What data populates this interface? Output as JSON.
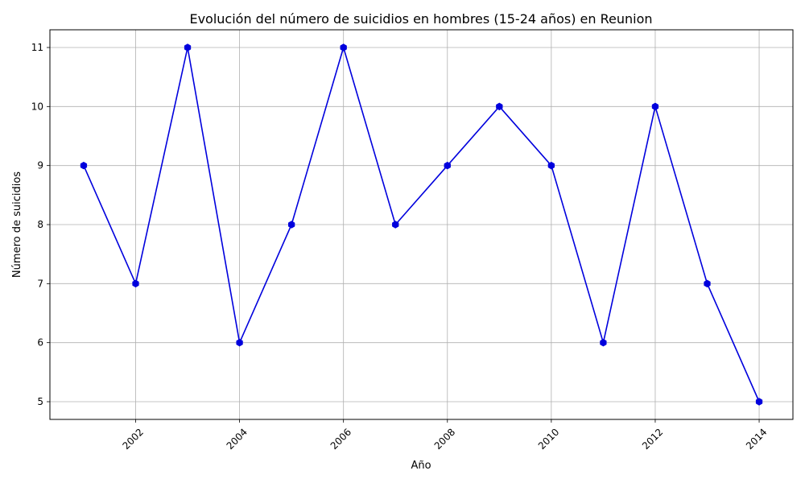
{
  "chart_data": {
    "type": "line",
    "title": "Evolución del número de suicidios en hombres (15-24 años) en Reunion",
    "xlabel": "Año",
    "ylabel": "Número de suicidios",
    "x": [
      2001,
      2002,
      2003,
      2004,
      2005,
      2006,
      2007,
      2008,
      2009,
      2010,
      2011,
      2012,
      2013,
      2014
    ],
    "series": [
      {
        "values": [
          9,
          7,
          11,
          6,
          8,
          11,
          8,
          9,
          10,
          9,
          6,
          10,
          7,
          5
        ],
        "color": "#0000dd",
        "marker": "hexagon"
      }
    ],
    "xlim": [
      2000.35,
      2014.65
    ],
    "ylim": [
      4.7,
      11.3
    ],
    "x_ticks": [
      "2002",
      "2004",
      "2006",
      "2008",
      "2010",
      "2012",
      "2014"
    ],
    "y_ticks": [
      "5",
      "6",
      "7",
      "8",
      "9",
      "10",
      "11"
    ],
    "x_tick_rotation_deg": 45,
    "grid": true,
    "legend": "none"
  }
}
